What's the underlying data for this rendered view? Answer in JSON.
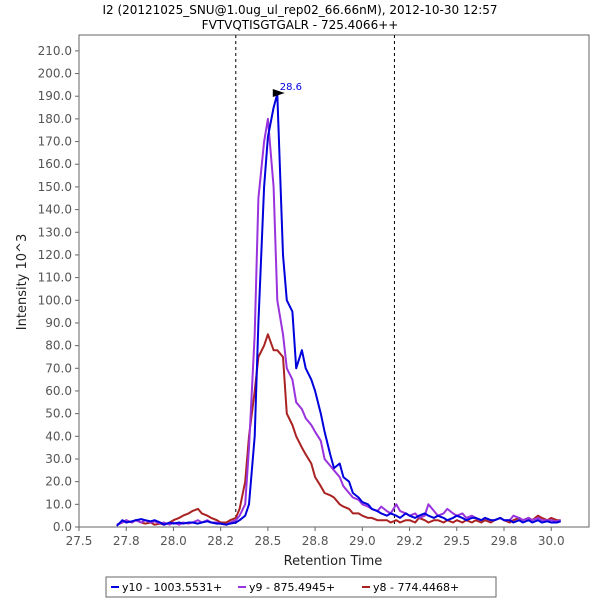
{
  "chart_data": {
    "type": "line",
    "title_line1": "I2 (20121025_SNU@1.0ug_ul_rep02_66.66nM), 2012-10-30 12:57",
    "title_line2": "FVTVQTISGTGALR - 725.4066++",
    "xlabel": "Retention Time",
    "ylabel": "Intensity 10^3",
    "xlim": [
      27.5,
      30.2
    ],
    "ylim": [
      0,
      217
    ],
    "x_ticks": [
      "27.5",
      "27.8",
      "28.0",
      "28.2",
      "28.5",
      "28.8",
      "29.0",
      "29.2",
      "29.5",
      "29.8",
      "30.0"
    ],
    "x_tick_values": [
      27.5,
      27.75,
      28.0,
      28.25,
      28.5,
      28.75,
      29.0,
      29.25,
      29.5,
      29.75,
      30.0
    ],
    "y_ticks": [
      "0.0",
      "10.0",
      "20.0",
      "30.0",
      "40.0",
      "50.0",
      "60.0",
      "70.0",
      "80.0",
      "90.0",
      "100.0",
      "110.0",
      "120.0",
      "130.0",
      "140.0",
      "150.0",
      "160.0",
      "170.0",
      "180.0",
      "190.0",
      "200.0",
      "210.0"
    ],
    "y_tick_values": [
      0,
      10,
      20,
      30,
      40,
      50,
      60,
      70,
      80,
      90,
      100,
      110,
      120,
      130,
      140,
      150,
      160,
      170,
      180,
      190,
      200,
      210
    ],
    "boundary_lines": [
      28.33,
      29.17
    ],
    "peak_annotation": {
      "label": "28.6",
      "x": 28.6,
      "y": 191
    },
    "series": [
      {
        "name": "y10 - 1003.5531+",
        "color": "#0000dd",
        "x": [
          27.7,
          27.73,
          27.75,
          27.78,
          27.8,
          27.83,
          27.85,
          27.88,
          27.9,
          27.93,
          27.95,
          27.98,
          28.0,
          28.03,
          28.05,
          28.08,
          28.1,
          28.13,
          28.15,
          28.18,
          28.2,
          28.23,
          28.25,
          28.28,
          28.3,
          28.33,
          28.35,
          28.38,
          28.4,
          28.43,
          28.45,
          28.48,
          28.5,
          28.53,
          28.55,
          28.58,
          28.6,
          28.63,
          28.65,
          28.68,
          28.7,
          28.73,
          28.75,
          28.78,
          28.8,
          28.83,
          28.85,
          28.88,
          28.9,
          28.93,
          28.95,
          28.98,
          29.0,
          29.03,
          29.05,
          29.08,
          29.1,
          29.13,
          29.15,
          29.18,
          29.2,
          29.23,
          29.25,
          29.28,
          29.3,
          29.33,
          29.35,
          29.38,
          29.4,
          29.43,
          29.45,
          29.48,
          29.5,
          29.53,
          29.55,
          29.58,
          29.6,
          29.63,
          29.65,
          29.68,
          29.7,
          29.73,
          29.75,
          29.78,
          29.8,
          29.83,
          29.85,
          29.88,
          29.9,
          29.93,
          29.95,
          29.98,
          30.0,
          30.03,
          30.05
        ],
        "values": [
          0.5,
          3,
          2,
          2.5,
          3,
          3.5,
          3,
          2.5,
          3,
          2,
          1,
          2,
          1.5,
          2,
          1.5,
          2,
          2,
          1.5,
          2,
          2.5,
          2,
          1.5,
          1.5,
          1,
          1.5,
          2,
          3,
          5,
          10,
          40,
          90,
          150,
          172,
          185,
          191,
          120,
          100,
          95,
          70,
          78,
          70,
          65,
          60,
          50,
          42,
          32,
          26,
          28,
          22,
          20,
          15,
          13,
          11,
          10,
          8,
          7,
          6,
          5,
          6,
          5,
          4,
          6,
          5,
          4,
          5,
          6,
          5,
          4,
          5,
          4,
          3,
          4,
          5,
          4,
          3,
          4,
          4,
          3,
          4,
          3,
          3,
          4,
          3,
          3,
          2,
          3,
          2,
          3,
          2,
          3,
          2,
          2.5,
          2,
          2,
          2.5
        ]
      },
      {
        "name": "y9 - 875.4945+",
        "color": "#9933dd",
        "x": [
          27.7,
          27.73,
          27.75,
          27.78,
          27.8,
          27.83,
          27.85,
          27.88,
          27.9,
          27.93,
          27.95,
          27.98,
          28.0,
          28.03,
          28.05,
          28.08,
          28.1,
          28.13,
          28.15,
          28.18,
          28.2,
          28.23,
          28.25,
          28.28,
          28.3,
          28.33,
          28.35,
          28.38,
          28.4,
          28.43,
          28.45,
          28.48,
          28.5,
          28.53,
          28.55,
          28.58,
          28.6,
          28.63,
          28.65,
          28.68,
          28.7,
          28.73,
          28.75,
          28.78,
          28.8,
          28.83,
          28.85,
          28.88,
          28.9,
          28.93,
          28.95,
          28.98,
          29.0,
          29.03,
          29.05,
          29.08,
          29.1,
          29.13,
          29.15,
          29.18,
          29.2,
          29.23,
          29.25,
          29.28,
          29.3,
          29.33,
          29.35,
          29.38,
          29.4,
          29.43,
          29.45,
          29.48,
          29.5,
          29.53,
          29.55,
          29.58,
          29.6,
          29.63,
          29.65,
          29.68,
          29.7,
          29.73,
          29.75,
          29.78,
          29.8,
          29.83,
          29.85,
          29.88,
          29.9,
          29.93,
          29.95,
          29.98,
          30.0,
          30.03,
          30.05
        ],
        "values": [
          1,
          2,
          3,
          2,
          3,
          2,
          3,
          2,
          2.5,
          1.5,
          2,
          1,
          2,
          1,
          2,
          1.5,
          2,
          3,
          2,
          3,
          2,
          2,
          1.5,
          1,
          2,
          3,
          5,
          10,
          35,
          85,
          145,
          170,
          180,
          150,
          100,
          85,
          70,
          65,
          55,
          52,
          48,
          45,
          42,
          38,
          30,
          27,
          25,
          22,
          18,
          15,
          13,
          12,
          10,
          9,
          8,
          7,
          9,
          7,
          6,
          10,
          7,
          6,
          5,
          6,
          4,
          5,
          10,
          7,
          5,
          6,
          8,
          6,
          5,
          6,
          4,
          5,
          4,
          3,
          4,
          3,
          3,
          4,
          3,
          3,
          5,
          4,
          3,
          4,
          3,
          4,
          3,
          3,
          3,
          2.5,
          3
        ]
      },
      {
        "name": "y8 - 774.4468+",
        "color": "#aa2222",
        "x": [
          27.7,
          27.73,
          27.75,
          27.78,
          27.8,
          27.83,
          27.85,
          27.88,
          27.9,
          27.93,
          27.95,
          27.98,
          28.0,
          28.03,
          28.05,
          28.08,
          28.1,
          28.13,
          28.15,
          28.18,
          28.2,
          28.23,
          28.25,
          28.28,
          28.3,
          28.33,
          28.35,
          28.38,
          28.4,
          28.43,
          28.45,
          28.48,
          28.5,
          28.53,
          28.55,
          28.58,
          28.6,
          28.63,
          28.65,
          28.68,
          28.7,
          28.73,
          28.75,
          28.78,
          28.8,
          28.83,
          28.85,
          28.88,
          28.9,
          28.93,
          28.95,
          28.98,
          29.0,
          29.03,
          29.05,
          29.08,
          29.1,
          29.13,
          29.15,
          29.18,
          29.2,
          29.23,
          29.25,
          29.28,
          29.3,
          29.33,
          29.35,
          29.38,
          29.4,
          29.43,
          29.45,
          29.48,
          29.5,
          29.53,
          29.55,
          29.58,
          29.6,
          29.63,
          29.65,
          29.68,
          29.7,
          29.73,
          29.75,
          29.78,
          29.8,
          29.83,
          29.85,
          29.88,
          29.9,
          29.93,
          29.95,
          29.98,
          30.0,
          30.03,
          30.05
        ],
        "values": [
          1,
          2,
          3,
          2,
          3,
          2,
          1.5,
          2,
          1,
          1.5,
          1,
          2,
          3,
          4,
          5,
          6,
          7,
          8,
          6,
          5,
          4,
          3,
          2,
          2,
          3,
          4,
          8,
          20,
          40,
          60,
          75,
          80,
          85,
          78,
          78,
          75,
          50,
          45,
          40,
          35,
          32,
          28,
          22,
          18,
          15,
          14,
          13,
          10,
          9,
          8,
          6,
          6,
          5,
          4,
          4,
          3,
          3,
          3,
          2,
          3,
          2,
          3,
          3,
          2,
          4,
          3,
          2,
          3,
          3,
          2,
          3,
          2,
          3,
          2,
          3,
          2,
          3,
          2,
          3,
          2,
          3,
          4,
          3,
          2,
          3,
          4,
          3,
          4,
          3,
          5,
          4,
          3,
          4,
          3,
          3
        ]
      }
    ]
  }
}
